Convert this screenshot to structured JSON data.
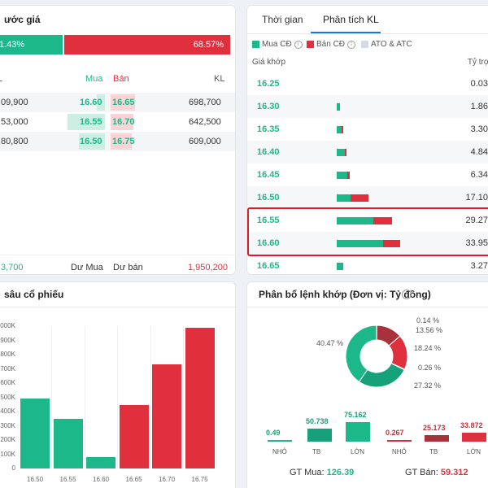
{
  "price_panel": {
    "title": "ước giá",
    "buy_ratio": "1.43%",
    "sell_ratio": "68.57%",
    "headers": {
      "left": "L",
      "buy": "Mua",
      "sell": "Bán",
      "vol": "KL"
    },
    "rows": [
      {
        "left": "09,900",
        "buy": "16.60",
        "sell": "16.65",
        "vol": "698,700"
      },
      {
        "left": "53,000",
        "buy": "16.55",
        "sell": "16.70",
        "vol": "642,500"
      },
      {
        "left": "80,800",
        "buy": "16.50",
        "sell": "16.75",
        "vol": "609,000"
      }
    ],
    "footer": {
      "left_value": "3,700",
      "buy_label": "Dư Mua",
      "sell_label": "Dư bán",
      "sell_value": "1,950,200"
    }
  },
  "analysis_panel": {
    "tabs": [
      "Thời gian",
      "Phân tích KL"
    ],
    "active_tab": 1,
    "legend": [
      {
        "label": "Mua CĐ",
        "color": "#1db88a"
      },
      {
        "label": "Bán CĐ",
        "color": "#e0303d"
      },
      {
        "label": "ATO & ATC",
        "color": "#d7dbe1"
      }
    ],
    "col_price": "Giá khớp",
    "col_share": "Tỷ trọn",
    "rows": [
      {
        "price": "16.25",
        "pct": "0.03",
        "buy": 0,
        "sell": 0
      },
      {
        "price": "16.30",
        "pct": "1.86",
        "buy": 4,
        "sell": 0
      },
      {
        "price": "16.35",
        "pct": "3.30",
        "buy": 6,
        "sell": 2
      },
      {
        "price": "16.40",
        "pct": "4.84",
        "buy": 10,
        "sell": 2
      },
      {
        "price": "16.45",
        "pct": "6.34",
        "buy": 13,
        "sell": 3
      },
      {
        "price": "16.50",
        "pct": "17.10",
        "buy": 17,
        "sell": 22
      },
      {
        "price": "16.55",
        "pct": "29.27",
        "buy": 45,
        "sell": 23
      },
      {
        "price": "16.60",
        "pct": "33.95",
        "buy": 57,
        "sell": 21
      },
      {
        "price": "16.65",
        "pct": "3.27",
        "buy": 8,
        "sell": 0
      }
    ]
  },
  "depth_panel": {
    "title": "sâu cổ phiếu",
    "chart_data": {
      "type": "bar",
      "categories": [
        "16.50",
        "16.55",
        "16.60",
        "16.65",
        "16.70",
        "16.75"
      ],
      "values": [
        490,
        350,
        80,
        445,
        730,
        990
      ],
      "colors": [
        "#1db88a",
        "#1db88a",
        "#1db88a",
        "#e0303d",
        "#e0303d",
        "#e0303d"
      ],
      "y_ticks": [
        "1000K",
        "900K",
        "800K",
        "700K",
        "600K",
        "500K",
        "400K",
        "300K",
        "200K",
        "100K",
        "0"
      ],
      "ylim": [
        0,
        1000
      ]
    }
  },
  "alloc_panel": {
    "title": "Phân bổ lệnh khớp (Đơn vị: Tỷ đồng)",
    "pie": {
      "slices": [
        {
          "label": "40.47 %",
          "value": 40.47,
          "color": "#1db88a"
        },
        {
          "label": "27.32 %",
          "value": 27.32,
          "color": "#17a17a"
        },
        {
          "label": "0.26 %",
          "value": 0.26,
          "color": "#f3a0a6"
        },
        {
          "label": "18.24 %",
          "value": 18.24,
          "color": "#e0303d"
        },
        {
          "label": "13.56 %",
          "value": 13.56,
          "color": "#a8323c"
        },
        {
          "label": "0.14 %",
          "value": 0.14,
          "color": "#7fd8b8"
        }
      ]
    },
    "bars": [
      {
        "cat": "NHỎ",
        "value": "0.49",
        "num": 0.49,
        "color": "#1db88a"
      },
      {
        "cat": "TB",
        "value": "50.738",
        "num": 50.738,
        "color": "#17a17a"
      },
      {
        "cat": "LỚN",
        "value": "75.162",
        "num": 75.162,
        "color": "#1db88a"
      },
      {
        "cat": "NHỎ",
        "value": "0.267",
        "num": 0.267,
        "color": "#e0303d"
      },
      {
        "cat": "TB",
        "value": "25.173",
        "num": 25.173,
        "color": "#a8323c"
      },
      {
        "cat": "LỚN",
        "value": "33.872",
        "num": 33.872,
        "color": "#e0303d"
      }
    ],
    "gt_buy_label": "GT Mua:",
    "gt_buy_value": "126.39",
    "gt_sell_label": "GT Bán:",
    "gt_sell_value": "59.312"
  }
}
